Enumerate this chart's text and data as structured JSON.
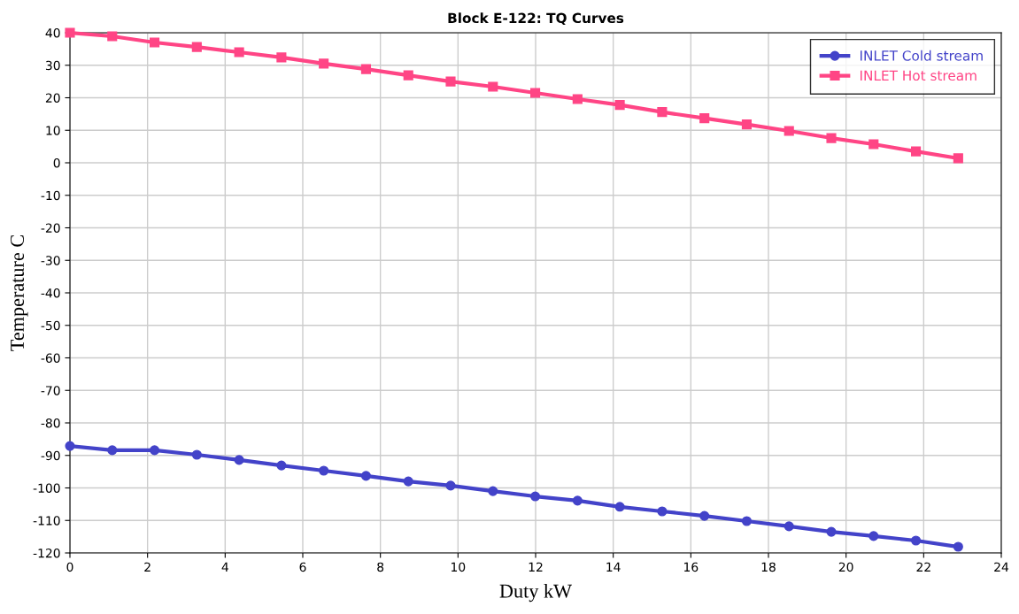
{
  "chart_data": {
    "type": "line",
    "title": "Block E-122: TQ Curves",
    "xlabel": "Duty kW",
    "ylabel": "Temperature C",
    "x": [
      0,
      1.09,
      2.18,
      3.27,
      4.36,
      5.45,
      6.54,
      7.63,
      8.72,
      9.81,
      10.9,
      11.99,
      13.08,
      14.17,
      15.26,
      16.35,
      17.44,
      18.53,
      19.62,
      20.71,
      21.8,
      22.89
    ],
    "series": [
      {
        "name": "INLET Cold stream",
        "color": "#4343c9",
        "marker": "circle",
        "values": [
          -87.1,
          -88.4,
          -88.4,
          -89.8,
          -91.4,
          -93.1,
          -94.7,
          -96.3,
          -98.0,
          -99.3,
          -101.0,
          -102.6,
          -103.9,
          -105.8,
          -107.2,
          -108.6,
          -110.2,
          -111.8,
          -113.5,
          -114.8,
          -116.2,
          -118.1
        ]
      },
      {
        "name": "INLET Hot stream",
        "color": "#ff4585",
        "marker": "square",
        "values": [
          40,
          38.9,
          37.0,
          35.6,
          34.0,
          32.4,
          30.5,
          28.8,
          26.9,
          25.0,
          23.4,
          21.5,
          19.6,
          17.8,
          15.6,
          13.7,
          11.8,
          9.8,
          7.6,
          5.7,
          3.5,
          1.4
        ]
      }
    ],
    "xlim": [
      0,
      24
    ],
    "xticks": [
      0,
      2,
      4,
      6,
      8,
      10,
      12,
      14,
      16,
      18,
      20,
      22,
      24
    ],
    "ylim": [
      -120,
      40
    ],
    "yticks": [
      -120,
      -110,
      -100,
      -90,
      -80,
      -70,
      -60,
      -50,
      -40,
      -30,
      -20,
      -10,
      0,
      10,
      20,
      30,
      40
    ],
    "grid": true,
    "legend": "top right",
    "line_style": "solid"
  }
}
